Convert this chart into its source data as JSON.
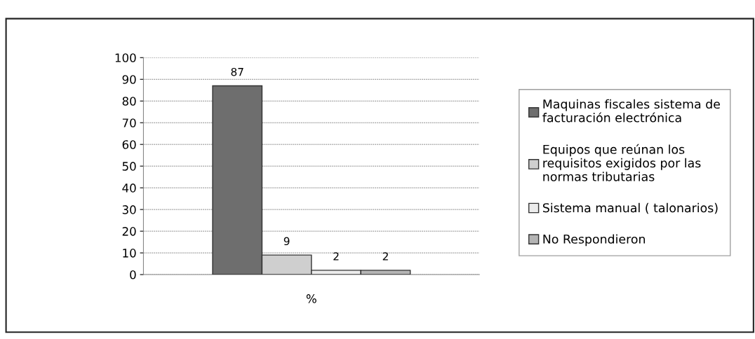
{
  "chart_data": {
    "type": "bar",
    "categories": [
      "%"
    ],
    "series": [
      {
        "name": "Maquinas fiscales sistema de facturación electrónica",
        "color": "#6e6e6e",
        "values": [
          87
        ]
      },
      {
        "name": "Equipos que reúnan los requisitos exigidos por las normas tributarias",
        "color": "#cfcfcf",
        "values": [
          9
        ]
      },
      {
        "name": "Sistema manual ( talonarios)",
        "color": "#ececec",
        "values": [
          2
        ]
      },
      {
        "name": "No Respondieron",
        "color": "#b4b4b4",
        "values": [
          2
        ]
      }
    ],
    "ylim": [
      0,
      100
    ],
    "yticks": [
      0,
      10,
      20,
      30,
      40,
      50,
      60,
      70,
      80,
      90,
      100
    ],
    "grid": "y",
    "legend": "right",
    "data_labels": true
  }
}
